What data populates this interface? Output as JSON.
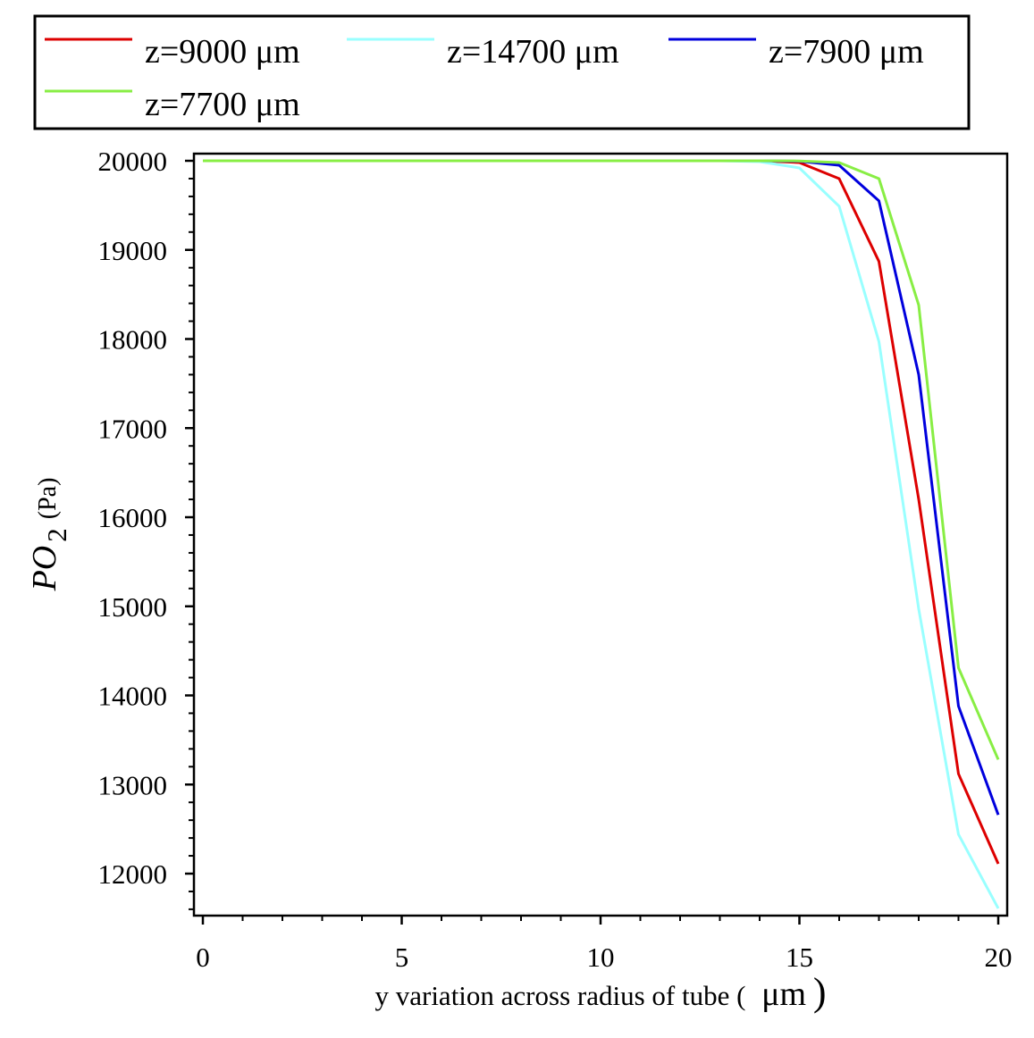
{
  "chart_data": {
    "type": "line",
    "title": "",
    "xlabel": "y variation across radius of tube (",
    "xlabel_unit": "μm",
    "xlabel_close": ")",
    "ylabel": {
      "symbol": "PO",
      "subscript": "2",
      "unit": "(Pa)"
    },
    "xlim": [
      0,
      20
    ],
    "ylim": [
      11500,
      20100
    ],
    "x_ticks": [
      0,
      5,
      10,
      15,
      20
    ],
    "y_ticks": [
      12000,
      13000,
      14000,
      15000,
      16000,
      17000,
      18000,
      19000,
      20000
    ],
    "grid": false,
    "legend_position": "top",
    "series": [
      {
        "name": "z=9000 μm",
        "color": "#dd0000",
        "x": [
          0,
          1,
          2,
          3,
          4,
          5,
          6,
          7,
          8,
          9,
          10,
          11,
          12,
          13,
          14,
          15,
          16,
          17,
          18,
          19,
          20
        ],
        "y": [
          20000,
          20000,
          20000,
          20000,
          20000,
          20000,
          20000,
          20000,
          20000,
          20000,
          20000,
          20000,
          20000,
          20000,
          20000,
          19980,
          19800,
          18870,
          16200,
          13120,
          12110
        ]
      },
      {
        "name": "z=14700 μm",
        "color": "#99ffff",
        "x": [
          0,
          1,
          2,
          3,
          4,
          5,
          6,
          7,
          8,
          9,
          10,
          11,
          12,
          13,
          14,
          15,
          16,
          17,
          18,
          19,
          20
        ],
        "y": [
          20000,
          20000,
          20000,
          20000,
          20000,
          20000,
          20000,
          20000,
          20000,
          20000,
          20000,
          20000,
          20000,
          20000,
          19990,
          19920,
          19490,
          17970,
          14970,
          12440,
          11610
        ]
      },
      {
        "name": "z=7900 μm",
        "color": "#0000dd",
        "x": [
          0,
          1,
          2,
          3,
          4,
          5,
          6,
          7,
          8,
          9,
          10,
          11,
          12,
          13,
          14,
          15,
          16,
          17,
          18,
          19,
          20
        ],
        "y": [
          20000,
          20000,
          20000,
          20000,
          20000,
          20000,
          20000,
          20000,
          20000,
          20000,
          20000,
          20000,
          20000,
          20000,
          20000,
          19995,
          19950,
          19550,
          17600,
          13880,
          12660
        ]
      },
      {
        "name": "z=7700 μm",
        "color": "#88ee44",
        "x": [
          0,
          1,
          2,
          3,
          4,
          5,
          6,
          7,
          8,
          9,
          10,
          11,
          12,
          13,
          14,
          15,
          16,
          17,
          18,
          19,
          20
        ],
        "y": [
          20000,
          20000,
          20000,
          20000,
          20000,
          20000,
          20000,
          20000,
          20000,
          20000,
          20000,
          20000,
          20000,
          20000,
          20000,
          19998,
          19980,
          19800,
          18380,
          14310,
          13280
        ]
      }
    ]
  }
}
